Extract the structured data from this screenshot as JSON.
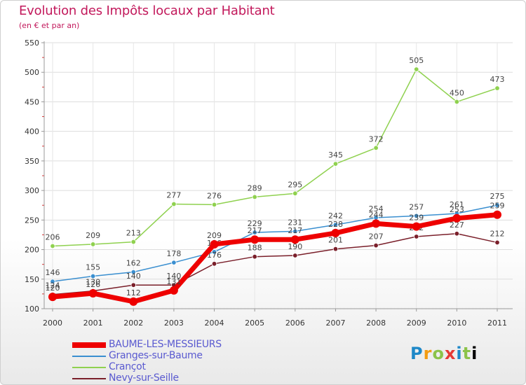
{
  "page": {
    "title": "Evolution des Impôts locaux par Habitant",
    "subtitle": "(en € et par an)",
    "logo": "Proxiti"
  },
  "chart_data": {
    "type": "line",
    "title": "Evolution des Impôts locaux par Habitant",
    "subtitle": "(en € et par an)",
    "xlabel": "",
    "ylabel": "",
    "ylim": [
      100,
      550
    ],
    "yticks": [
      100,
      150,
      200,
      250,
      300,
      350,
      400,
      450,
      500,
      550
    ],
    "categories": [
      "2000",
      "2001",
      "2002",
      "2003",
      "2004",
      "2005",
      "2006",
      "2007",
      "2008",
      "2009",
      "2010",
      "2011"
    ],
    "series": [
      {
        "name": "Crançot",
        "color": "#8fd14f",
        "values": [
          206,
          209,
          213,
          277,
          276,
          289,
          295,
          345,
          372,
          505,
          450,
          473
        ],
        "labels": [
          "206",
          "209",
          "213",
          "277",
          "276",
          "289",
          "295",
          "345",
          "372",
          "505",
          "450",
          "473"
        ]
      },
      {
        "name": "Granges-sur-Baume",
        "color": "#3a8fd0",
        "values": [
          146,
          155,
          162,
          178,
          196,
          229,
          231,
          242,
          254,
          257,
          261,
          275
        ],
        "labels": [
          "146",
          "155",
          "162",
          "178",
          "196",
          "229",
          "231",
          "242",
          "254",
          "257",
          "261",
          "275"
        ]
      },
      {
        "name": "Nevy-sur-Seille",
        "color": "#7a1f2a",
        "values": [
          124,
          130,
          140,
          140,
          176,
          188,
          190,
          201,
          207,
          222,
          227,
          212
        ],
        "labels": [
          "124",
          "130",
          "140",
          "140",
          "176",
          "188",
          "190",
          "201",
          "207",
          "222",
          "227",
          "212"
        ]
      },
      {
        "name": "BAUME-LES-MESSIEURS",
        "color": "#ee0000",
        "values": [
          120,
          126,
          112,
          131,
          209,
          217,
          217,
          228,
          244,
          239,
          253,
          259
        ],
        "labels": [
          "120",
          "126",
          "112",
          "131",
          "209",
          "217",
          "217",
          "228",
          "244",
          "239",
          "253",
          "259"
        ]
      }
    ],
    "legend": [
      "BAUME-LES-MESSIEURS",
      "Granges-sur-Baume",
      "Crançot",
      "Nevy-sur-Seille"
    ]
  }
}
